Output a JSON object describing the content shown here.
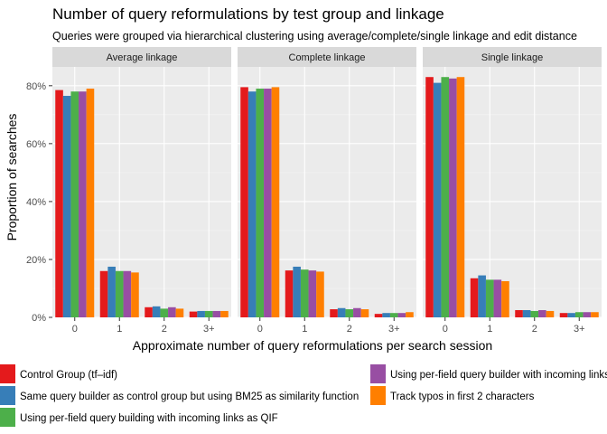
{
  "chart_data": {
    "type": "bar",
    "title": "Number of query reformulations by test group and linkage",
    "subtitle": "Queries were grouped via hierarchical clustering using average/complete/single linkage and edit distance",
    "xlabel": "Approximate number of query reformulations per search session",
    "ylabel": "Proportion of searches",
    "categories": [
      "0",
      "1",
      "2",
      "3+"
    ],
    "ylim": [
      0,
      0.865
    ],
    "yticks": [
      0,
      0.2,
      0.4,
      0.6,
      0.8
    ],
    "ytick_labels": [
      "0%",
      "20%",
      "40%",
      "60%",
      "80%"
    ],
    "grid": true,
    "legend_position": "bottom",
    "series": [
      {
        "name": "Control Group (tf–idf)",
        "color": "#E41A1C"
      },
      {
        "name": "Same query builder as control group but using BM25 as similarity function",
        "color": "#377EB8"
      },
      {
        "name": "Using per-field query building with incoming links as QIF",
        "color": "#4DAF4A"
      },
      {
        "name": "Using per-field query builder with incoming links as QIF plus fuzzy search",
        "color": "#984EA3"
      },
      {
        "name": "Track typos in first 2 characters",
        "color": "#FF7F00"
      }
    ],
    "facets": [
      {
        "label": "Average linkage",
        "values": [
          [
            0.785,
            0.16,
            0.035,
            0.02
          ],
          [
            0.765,
            0.175,
            0.038,
            0.022
          ],
          [
            0.78,
            0.16,
            0.03,
            0.022
          ],
          [
            0.78,
            0.16,
            0.035,
            0.022
          ],
          [
            0.79,
            0.155,
            0.03,
            0.022
          ]
        ]
      },
      {
        "label": "Complete linkage",
        "values": [
          [
            0.795,
            0.162,
            0.028,
            0.012
          ],
          [
            0.78,
            0.175,
            0.032,
            0.015
          ],
          [
            0.79,
            0.165,
            0.028,
            0.015
          ],
          [
            0.79,
            0.162,
            0.032,
            0.015
          ],
          [
            0.795,
            0.158,
            0.028,
            0.018
          ]
        ]
      },
      {
        "label": "Single linkage",
        "values": [
          [
            0.83,
            0.135,
            0.025,
            0.015
          ],
          [
            0.81,
            0.145,
            0.025,
            0.015
          ],
          [
            0.83,
            0.13,
            0.022,
            0.018
          ],
          [
            0.825,
            0.13,
            0.025,
            0.018
          ],
          [
            0.83,
            0.125,
            0.022,
            0.018
          ]
        ]
      }
    ]
  }
}
